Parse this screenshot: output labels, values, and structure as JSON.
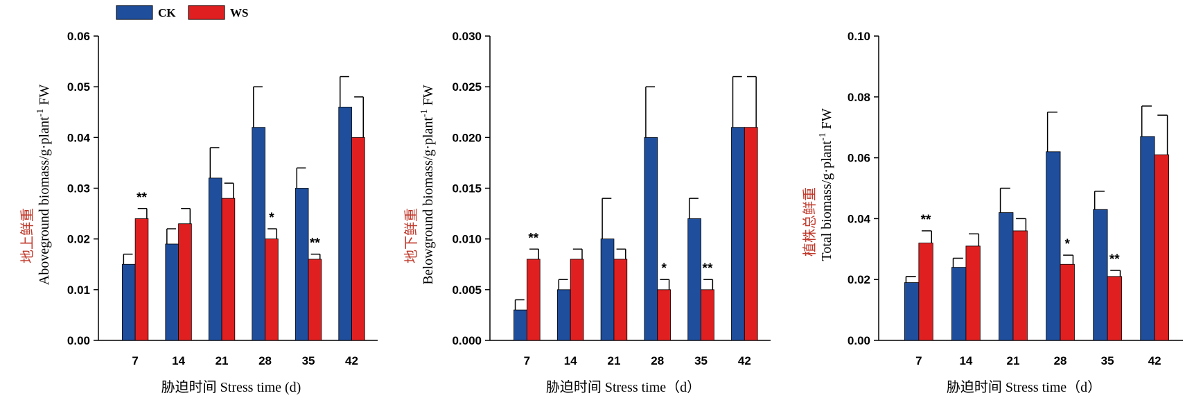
{
  "legend": [
    {
      "name": "CK",
      "color": "#1f4e9c"
    },
    {
      "name": "WS",
      "color": "#e02020"
    }
  ],
  "chart_data": [
    {
      "type": "bar",
      "categories": [
        "7",
        "14",
        "21",
        "28",
        "35",
        "42"
      ],
      "series": [
        {
          "name": "CK",
          "values": [
            0.015,
            0.019,
            0.032,
            0.042,
            0.03,
            0.046
          ],
          "errors": [
            0.002,
            0.003,
            0.006,
            0.008,
            0.004,
            0.006
          ]
        },
        {
          "name": "WS",
          "values": [
            0.024,
            0.023,
            0.028,
            0.02,
            0.016,
            0.04
          ],
          "errors": [
            0.002,
            0.003,
            0.003,
            0.002,
            0.001,
            0.008
          ]
        }
      ],
      "significance": [
        "**",
        "",
        "",
        "*",
        "**",
        ""
      ],
      "ylim": [
        0,
        0.06
      ],
      "yticks": [
        "0.00",
        "0.01",
        "0.02",
        "0.03",
        "0.04",
        "0.05",
        "0.06"
      ],
      "ylabel_cn": "地上鲜重",
      "ylabel_en": "Aboveground biomass/g·plant",
      "ylabel_sup": "-1",
      "ylabel_tail": " FW",
      "xlabel": "胁迫时间 Stress time (d)"
    },
    {
      "type": "bar",
      "categories": [
        "7",
        "14",
        "21",
        "28",
        "35",
        "42"
      ],
      "series": [
        {
          "name": "CK",
          "values": [
            0.003,
            0.005,
            0.01,
            0.02,
            0.012,
            0.021
          ],
          "errors": [
            0.001,
            0.001,
            0.004,
            0.005,
            0.002,
            0.005
          ]
        },
        {
          "name": "WS",
          "values": [
            0.008,
            0.008,
            0.008,
            0.005,
            0.005,
            0.021
          ],
          "errors": [
            0.001,
            0.001,
            0.001,
            0.001,
            0.001,
            0.005
          ]
        }
      ],
      "significance": [
        "**",
        "",
        "",
        "*",
        "**",
        ""
      ],
      "ylim": [
        0,
        0.03
      ],
      "yticks": [
        "0.000",
        "0.005",
        "0.010",
        "0.015",
        "0.020",
        "0.025",
        "0.030"
      ],
      "ylabel_cn": "地下鲜重",
      "ylabel_en": "Belowground biomass/g·plant",
      "ylabel_sup": "-1",
      "ylabel_tail": " FW",
      "xlabel": "胁迫时间 Stress time（d）"
    },
    {
      "type": "bar",
      "categories": [
        "7",
        "14",
        "21",
        "28",
        "35",
        "42"
      ],
      "series": [
        {
          "name": "CK",
          "values": [
            0.019,
            0.024,
            0.042,
            0.062,
            0.043,
            0.067
          ],
          "errors": [
            0.002,
            0.003,
            0.008,
            0.013,
            0.006,
            0.01
          ]
        },
        {
          "name": "WS",
          "values": [
            0.032,
            0.031,
            0.036,
            0.025,
            0.021,
            0.061
          ],
          "errors": [
            0.004,
            0.004,
            0.004,
            0.003,
            0.002,
            0.013
          ]
        }
      ],
      "significance": [
        "**",
        "",
        "",
        "*",
        "**",
        ""
      ],
      "ylim": [
        0,
        0.1
      ],
      "yticks": [
        "0.00",
        "0.02",
        "0.04",
        "0.06",
        "0.08",
        "0.10"
      ],
      "ylabel_cn": "植株总鲜重",
      "ylabel_en": "Total biomass/g·plant",
      "ylabel_sup": "-1",
      "ylabel_tail": " FW",
      "xlabel": "胁迫时间 Stress time（d）"
    }
  ]
}
